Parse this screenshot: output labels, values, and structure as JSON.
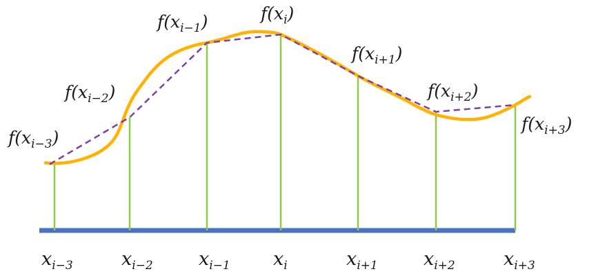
{
  "colors": {
    "curve": "#FFB300",
    "chord": "#7B3FA8",
    "stem": "#8CCB4A",
    "axis": "#4A72C4",
    "text": "#1a1a1a"
  },
  "nodes": [
    {
      "f_base": "f(x",
      "f_sub": "i−3",
      "f_close": ")",
      "x_base": "x",
      "x_sub": "i−3"
    },
    {
      "f_base": "f(x",
      "f_sub": "i−2",
      "f_close": ")",
      "x_base": "x",
      "x_sub": "i−2"
    },
    {
      "f_base": "f(x",
      "f_sub": "i−1",
      "f_close": ")",
      "x_base": "x",
      "x_sub": "i−1"
    },
    {
      "f_base": "f(x",
      "f_sub": "i",
      "f_close": ")",
      "x_base": "x",
      "x_sub": "i"
    },
    {
      "f_base": "f(x",
      "f_sub": "i+1",
      "f_close": ")",
      "x_base": "x",
      "x_sub": "i+1"
    },
    {
      "f_base": "f(x",
      "f_sub": "i+2",
      "f_close": ")",
      "x_base": "x",
      "x_sub": "i+2"
    },
    {
      "f_base": "f(x",
      "f_sub": "i+3",
      "f_close": ")",
      "x_base": "x",
      "x_sub": "i+3"
    }
  ]
}
